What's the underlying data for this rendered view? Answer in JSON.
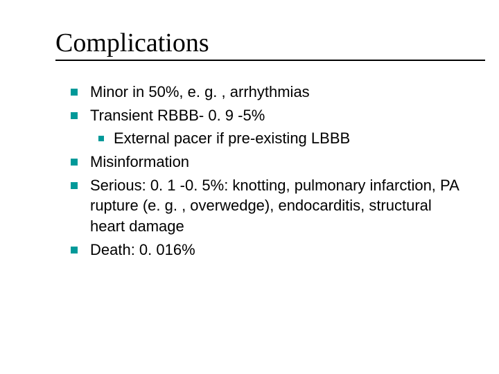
{
  "title": "Complications",
  "bullet_color": "#009999",
  "text_color": "#000000",
  "background_color": "#ffffff",
  "title_fontsize": 38,
  "body_fontsize": 22,
  "items": [
    {
      "text": "Minor in 50%, e. g. , arrhythmias",
      "level": 1
    },
    {
      "text": "Transient RBBB- 0. 9 -5%",
      "level": 1
    },
    {
      "text": "External pacer if pre-existing LBBB",
      "level": 2
    },
    {
      "text": "Misinformation",
      "level": 1
    },
    {
      "text": "Serious: 0. 1 -0. 5%: knotting, pulmonary infarction, PA rupture (e. g. , overwedge), endocarditis, structural heart damage",
      "level": 1
    },
    {
      "text": "Death: 0. 016%",
      "level": 1
    }
  ]
}
